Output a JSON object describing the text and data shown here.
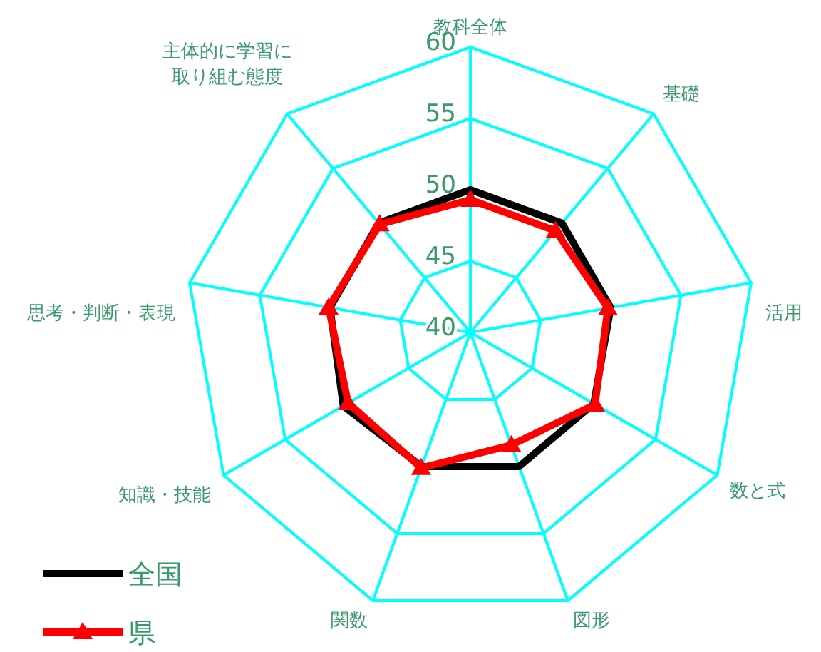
{
  "chart_data": {
    "type": "radar",
    "categories": [
      "教科全体",
      "基礎",
      "活用",
      "数と式",
      "図形",
      "関数",
      "知識・技能",
      "思考・判断・表現",
      "主体的に学習に取り組む態度"
    ],
    "ylim": [
      40,
      60
    ],
    "yticks": [
      40,
      45,
      50,
      55,
      60
    ],
    "grid": true,
    "legend": "bottom left",
    "series": [
      {
        "name": "全国",
        "color": "#000000",
        "marker": "none",
        "values": [
          50,
          50,
          50,
          50,
          50,
          50,
          50.3,
          50,
          50
        ]
      },
      {
        "name": "県",
        "color": "#ff0000",
        "marker": "triangle",
        "values": [
          49.3,
          49.3,
          49.8,
          50.1,
          48.4,
          50.1,
          49.9,
          50.1,
          49.9
        ]
      }
    ]
  }
}
